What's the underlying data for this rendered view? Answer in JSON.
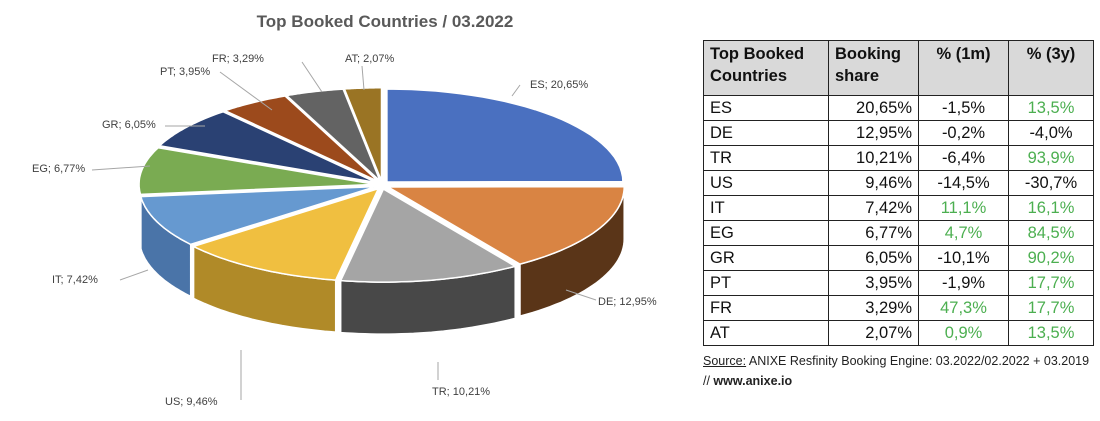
{
  "chart_data": {
    "type": "pie",
    "title": "Top Booked Countries / 03.2022",
    "categories": [
      "ES",
      "DE",
      "TR",
      "US",
      "IT",
      "EG",
      "GR",
      "PT",
      "FR",
      "AT"
    ],
    "values": [
      20.65,
      12.95,
      10.21,
      9.46,
      7.42,
      6.77,
      6.05,
      3.95,
      3.29,
      2.07
    ],
    "labels": [
      "ES; 20,65%",
      "DE; 12,95%",
      "TR; 10,21%",
      "US; 9,46%",
      "IT; 7,42%",
      "EG; 6,77%",
      "GR; 6,05%",
      "PT; 3,95%",
      "FR; 3,29%",
      "AT; 2,07%"
    ],
    "colors": [
      "#4a70c0",
      "#d98443",
      "#a5a5a5",
      "#f0bf40",
      "#6699d0",
      "#7aab52",
      "#2a4173",
      "#9c4a1c",
      "#636363",
      "#9a7424"
    ],
    "side_colors": [
      "#2f4f8f",
      "#5a3518",
      "#484848",
      "#b08a28",
      "#4a74a8",
      "#557a38",
      "#1a2a4f",
      "#6a3010",
      "#404040",
      "#6a5018"
    ]
  },
  "table": {
    "headers": [
      "Top Booked\nCountries",
      "Booking\nshare",
      "% (1m)",
      "% (3y)"
    ],
    "header_lines": [
      [
        "Top Booked",
        "Countries"
      ],
      [
        "Booking",
        "share"
      ]
    ],
    "rows": [
      {
        "country": "ES",
        "share": "20,65%",
        "m1": "-1,5%",
        "y3": "13,5%",
        "m1_pos": false,
        "y3_pos": true
      },
      {
        "country": "DE",
        "share": "12,95%",
        "m1": "-0,2%",
        "y3": "-4,0%",
        "m1_pos": false,
        "y3_pos": false
      },
      {
        "country": "TR",
        "share": "10,21%",
        "m1": "-6,4%",
        "y3": "93,9%",
        "m1_pos": false,
        "y3_pos": true
      },
      {
        "country": "US",
        "share": "9,46%",
        "m1": "-14,5%",
        "y3": "-30,7%",
        "m1_pos": false,
        "y3_pos": false
      },
      {
        "country": "IT",
        "share": "7,42%",
        "m1": "11,1%",
        "y3": "16,1%",
        "m1_pos": true,
        "y3_pos": true
      },
      {
        "country": "EG",
        "share": "6,77%",
        "m1": "4,7%",
        "y3": "84,5%",
        "m1_pos": true,
        "y3_pos": true
      },
      {
        "country": "GR",
        "share": "6,05%",
        "m1": "-10,1%",
        "y3": "90,2%",
        "m1_pos": false,
        "y3_pos": true
      },
      {
        "country": "PT",
        "share": "3,95%",
        "m1": "-1,9%",
        "y3": "17,7%",
        "m1_pos": false,
        "y3_pos": true
      },
      {
        "country": "FR",
        "share": "3,29%",
        "m1": "47,3%",
        "y3": "17,7%",
        "m1_pos": true,
        "y3_pos": true
      },
      {
        "country": "AT",
        "share": "2,07%",
        "m1": "0,9%",
        "y3": "13,5%",
        "m1_pos": true,
        "y3_pos": true
      }
    ],
    "positive_color": "#4caf50"
  },
  "source": {
    "label": "Source:",
    "text": " ANIXE Resfinity Booking Engine: 03.2022/02.2022 + 03.2019 // ",
    "url": "www.anixe.io"
  }
}
